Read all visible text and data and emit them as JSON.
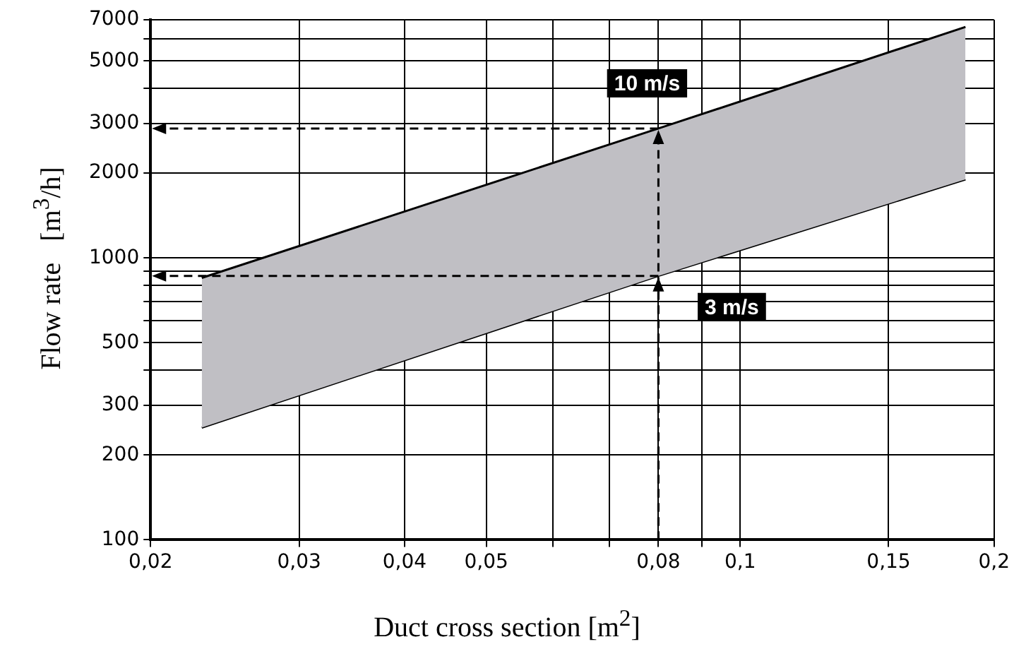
{
  "chart_data": {
    "type": "area",
    "xlabel": "Duct cross section [m$^{2}$]",
    "ylabel": "Flow rate   [m$^{3}$/h]",
    "series": [
      {
        "name": "10 m/s",
        "color": "#c0bfc4",
        "x": [
          0.023,
          0.08,
          0.185
        ],
        "values": [
          850,
          2880,
          6600
        ]
      },
      {
        "name": "3 m/s",
        "type": "line",
        "color": "#000000",
        "x": [
          0.023,
          0.08,
          0.185
        ],
        "values": [
          250,
          864,
          1900
        ]
      }
    ],
    "log": "xy",
    "xlim": [
      0.02,
      0.2
    ],
    "ylim": [
      100,
      7000
    ],
    "xticks": [
      {
        "value": 0.02,
        "label": "0,02"
      },
      {
        "value": 0.03,
        "label": "0,03"
      },
      {
        "value": 0.04,
        "label": "0,04"
      },
      {
        "value": 0.05,
        "label": "0,05"
      },
      {
        "value": 0.06,
        "label": null
      },
      {
        "value": 0.07,
        "label": null
      },
      {
        "value": 0.08,
        "label": "0,08"
      },
      {
        "value": 0.09,
        "label": null
      },
      {
        "value": 0.1,
        "label": "0,1"
      },
      {
        "value": 0.15,
        "label": "0,15"
      },
      {
        "value": 0.2,
        "label": "0,2"
      }
    ],
    "yticks": [
      100,
      200,
      300,
      {
        "value": 400,
        "label": null
      },
      500,
      {
        "value": 600,
        "label": null
      },
      {
        "value": 700,
        "label": null
      },
      {
        "value": 800,
        "label": null
      },
      {
        "value": 900,
        "label": null
      },
      1000,
      2000,
      3000,
      {
        "value": 4000,
        "label": null
      },
      5000,
      {
        "value": 6000,
        "label": null
      },
      7000
    ],
    "grid": true,
    "legend": false
  }
}
